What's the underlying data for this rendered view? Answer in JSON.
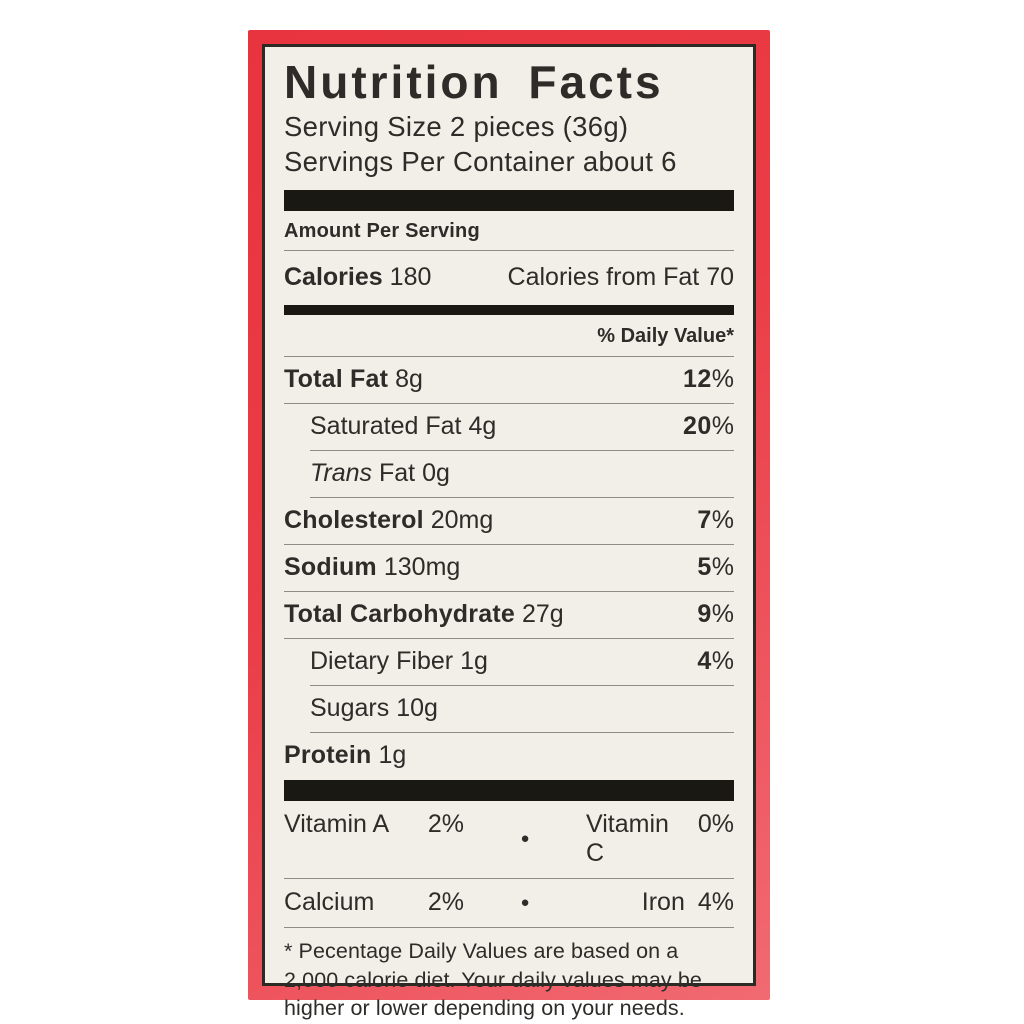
{
  "colors": {
    "frame_red": "#ea3d47",
    "label_background": "#f1efe8",
    "text": "#2d2c29",
    "separator_bar": "#191813",
    "hairline": "#8e8c83"
  },
  "label": {
    "title": "Nutrition Facts",
    "serving_size": "Serving Size 2 pieces (36g)",
    "servings_per_container": "Servings Per Container about 6",
    "amount_per_serving": "Amount Per Serving",
    "calories_label": "Calories",
    "calories_value": "180",
    "calories_from_fat": "Calories from Fat 70",
    "daily_value_header": "% Daily Value*",
    "nutrients": [
      {
        "name": "Total Fat",
        "amount": "8g",
        "dv": "12%",
        "bold": true,
        "indent": false
      },
      {
        "name": "Saturated Fat",
        "amount": "4g",
        "dv": "20%",
        "bold": false,
        "indent": true
      },
      {
        "name_italic": "Trans",
        "name": " Fat",
        "amount": "0g",
        "dv": "",
        "bold": false,
        "indent": true
      },
      {
        "name": "Cholesterol",
        "amount": "20mg",
        "dv": "7%",
        "bold": true,
        "indent": false
      },
      {
        "name": "Sodium",
        "amount": "130mg",
        "dv": "5%",
        "bold": true,
        "indent": false
      },
      {
        "name": "Total Carbohydrate",
        "amount": "27g",
        "dv": "9%",
        "bold": true,
        "indent": false
      },
      {
        "name": "Dietary Fiber",
        "amount": "1g",
        "dv": "4%",
        "bold": false,
        "indent": true
      },
      {
        "name": "Sugars",
        "amount": "10g",
        "dv": "",
        "bold": false,
        "indent": true
      },
      {
        "name": "Protein",
        "amount": "1g",
        "dv": "",
        "bold": true,
        "indent": false,
        "no_rule": true
      }
    ],
    "vitamins": [
      {
        "left_label": "Vitamin A",
        "left_value": "2%",
        "right_label": "Vitamin C",
        "right_value": "0%"
      },
      {
        "left_label": "Calcium",
        "left_value": "2%",
        "right_label": "Iron",
        "right_value": "4%"
      }
    ],
    "bullet": "●",
    "footnote": "* Pecentage Daily Values are based on a 2,000 calorie diet. Your daily values may be higher or lower depending on your needs."
  }
}
